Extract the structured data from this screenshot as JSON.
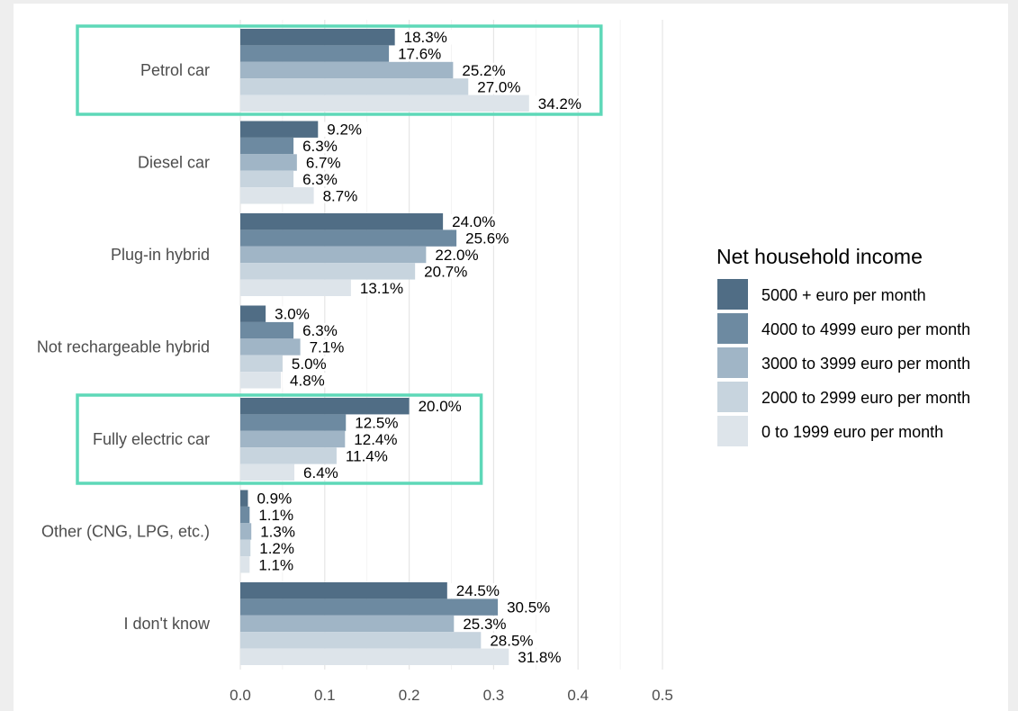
{
  "chart_data": {
    "type": "bar",
    "orientation": "horizontal",
    "categories": [
      "Petrol car",
      "Diesel car",
      "Plug-in hybrid",
      "Not rechargeable hybrid",
      "Fully electric car",
      "Other (CNG, LPG, etc.)",
      "I don't know"
    ],
    "series": [
      {
        "name": "5000 + euro per month",
        "color": "#506d85",
        "values": [
          0.183,
          0.092,
          0.24,
          0.03,
          0.2,
          0.009,
          0.245
        ],
        "labels": [
          "18.3%",
          "9.2%",
          "24.0%",
          "3.0%",
          "20.0%",
          "0.9%",
          "24.5%"
        ]
      },
      {
        "name": "4000 to 4999 euro per month",
        "color": "#6d8aa1",
        "values": [
          0.176,
          0.063,
          0.256,
          0.063,
          0.125,
          0.011,
          0.305
        ],
        "labels": [
          "17.6%",
          "6.3%",
          "25.6%",
          "6.3%",
          "12.5%",
          "1.1%",
          "30.5%"
        ]
      },
      {
        "name": "3000 to 3999 euro per month",
        "color": "#a0b5c6",
        "values": [
          0.252,
          0.067,
          0.22,
          0.071,
          0.124,
          0.013,
          0.253
        ],
        "labels": [
          "25.2%",
          "6.7%",
          "22.0%",
          "7.1%",
          "12.4%",
          "1.3%",
          "25.3%"
        ]
      },
      {
        "name": "2000 to 2999 euro per month",
        "color": "#c7d4de",
        "values": [
          0.27,
          0.063,
          0.207,
          0.05,
          0.114,
          0.012,
          0.285
        ],
        "labels": [
          "27.0%",
          "6.3%",
          "20.7%",
          "5.0%",
          "11.4%",
          "1.2%",
          "28.5%"
        ]
      },
      {
        "name": "0 to 1999 euro per month",
        "color": "#dde4ea",
        "values": [
          0.342,
          0.087,
          0.131,
          0.048,
          0.064,
          0.011,
          0.318
        ],
        "labels": [
          "34.2%",
          "8.7%",
          "13.1%",
          "4.8%",
          "6.4%",
          "1.1%",
          "31.8%"
        ]
      }
    ],
    "x_ticks": [
      "0.0",
      "0.1",
      "0.2",
      "0.3",
      "0.4",
      "0.5"
    ],
    "xlim": [
      0,
      0.5
    ],
    "grid": true,
    "legend": {
      "title": "Net household income",
      "position": "right"
    },
    "highlight": {
      "categories": [
        "Petrol car",
        "Fully electric car"
      ],
      "color": "#5ed8b8"
    }
  }
}
